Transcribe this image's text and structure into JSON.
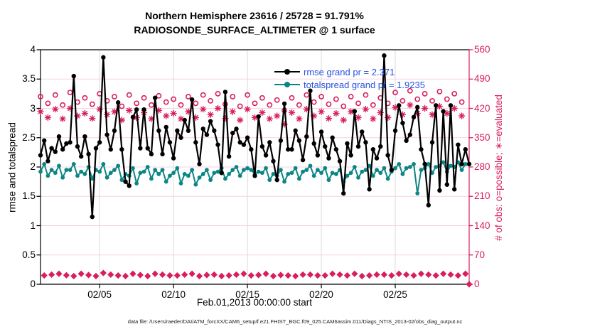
{
  "figure": {
    "title_line1": "Northern Hemisphere 23616 / 25728 = 91.791%",
    "title_line2": "RADIOSONDE_SURFACE_ALTIMETER @ 1 surface",
    "xlabel": "Feb.01,2013 00:00:00 start",
    "ylabel_left": "rmse and totalspread",
    "ylabel_right": "# of obs: o=possible; ∗=evaluated",
    "caption": "data file: /Users/raeder/DAI/ATM_forcXX/CAM6_setup/f.e21.FHIST_BGC.f09_025.CAM6assim.011/Diags_NTrS_2013-02/obs_diag_output.nc"
  },
  "legend": {
    "items": [
      {
        "label": "rmse grand pr = 2.371",
        "color": "#000000"
      },
      {
        "label": "totalspread grand pr = 1.9235",
        "color": "#0c8585"
      }
    ],
    "text_color": "#2a52e0"
  },
  "colors": {
    "black": "#000000",
    "teal": "#0c8585",
    "pink": "#d81e5f",
    "grid_h": "#f6d3de",
    "grid_v": "#dcdcdc",
    "legend_blue": "#2a52e0"
  },
  "chart_data": {
    "type": "line",
    "title": "Northern Hemisphere 23616 / 25728 = 91.791%  |  RADIOSONDE_SURFACE_ALTIMETER @ 1 surface",
    "x_axis": {
      "start_day": 0,
      "step_days": 0.25,
      "xlim": [
        0,
        29
      ],
      "ticks": [
        {
          "day": 4,
          "label": "02/05"
        },
        {
          "day": 9,
          "label": "02/10"
        },
        {
          "day": 14,
          "label": "02/15"
        },
        {
          "day": 19,
          "label": "02/20"
        },
        {
          "day": 24,
          "label": "02/25"
        }
      ],
      "label": "Feb.01,2013 00:00:00 start"
    },
    "y_axis_left": {
      "lim": [
        0,
        4
      ],
      "tick_step": 0.5,
      "label": "rmse and totalspread",
      "tick_labels": [
        "0",
        "0.5",
        "1",
        "1.5",
        "2",
        "2.5",
        "3",
        "3.5",
        "4"
      ]
    },
    "y_axis_right": {
      "lim": [
        0,
        560
      ],
      "tick_step": 70,
      "label": "# of obs: o=possible; ∗=evaluated",
      "tick_labels": [
        "0",
        "70",
        "140",
        "210",
        "280",
        "350",
        "420",
        "490",
        "560"
      ]
    },
    "grid": true,
    "legend_position": "top-right-inside",
    "series": [
      {
        "name": "rmse",
        "axis": "left",
        "style": "line+dot",
        "color": "#000000",
        "grand_mean": 2.371,
        "values": [
          2.2,
          2.45,
          2.1,
          2.32,
          2.26,
          2.52,
          2.3,
          2.4,
          2.42,
          3.55,
          2.35,
          2.18,
          2.52,
          2.22,
          1.15,
          2.32,
          2.42,
          3.87,
          2.55,
          2.3,
          2.62,
          3.1,
          2.3,
          1.75,
          1.68,
          2.85,
          2.98,
          2.32,
          2.98,
          2.32,
          2.22,
          3.18,
          2.62,
          2.22,
          2.68,
          2.42,
          2.15,
          2.62,
          2.5,
          2.8,
          2.62,
          3.15,
          2.42,
          2.05,
          2.65,
          2.55,
          2.78,
          2.62,
          2.38,
          1.9,
          3.28,
          2.18,
          2.58,
          2.65,
          2.42,
          2.38,
          2.5,
          2.3,
          1.85,
          2.86,
          2.35,
          2.2,
          2.42,
          2.1,
          1.78,
          2.45,
          3.08,
          2.3,
          2.3,
          2.62,
          2.45,
          2.12,
          2.52,
          3.3,
          2.4,
          2.2,
          2.6,
          2.35,
          2.15,
          2.5,
          2.3,
          2.1,
          1.55,
          2.4,
          2.2,
          2.95,
          2.35,
          2.6,
          2.42,
          1.62,
          2.3,
          2.15,
          2.35,
          3.9,
          2.2,
          1.95,
          2.62,
          3.05,
          2.75,
          2.45,
          2.55,
          2.85,
          3.02,
          2.3,
          2.05,
          1.35,
          2.42,
          3.05,
          1.6,
          2.95,
          1.7,
          3.05,
          1.62,
          2.38,
          2.05,
          2.3,
          2.05
        ]
      },
      {
        "name": "totalspread",
        "axis": "left",
        "style": "line+dot",
        "color": "#0c8585",
        "grand_mean": 1.9235,
        "values": [
          1.92,
          2.05,
          1.85,
          1.95,
          1.9,
          2.02,
          1.82,
          1.95,
          1.95,
          2.05,
          1.85,
          1.92,
          1.88,
          2.0,
          1.8,
          1.95,
          1.92,
          2.05,
          1.82,
          1.9,
          1.95,
          2.02,
          1.78,
          1.88,
          1.85,
          1.98,
          1.72,
          1.9,
          1.92,
          2.0,
          1.8,
          1.95,
          1.88,
          1.95,
          1.75,
          1.85,
          1.9,
          1.98,
          1.72,
          1.88,
          1.85,
          1.95,
          1.7,
          1.82,
          1.88,
          1.95,
          1.78,
          1.9,
          1.92,
          1.98,
          1.8,
          1.88,
          1.95,
          2.0,
          1.85,
          1.95,
          1.98,
          1.95,
          1.88,
          1.92,
          1.9,
          1.98,
          1.78,
          1.88,
          1.85,
          1.95,
          1.75,
          1.88,
          1.9,
          1.98,
          1.8,
          1.92,
          1.95,
          2.02,
          1.85,
          1.95,
          1.9,
          1.98,
          1.78,
          1.9,
          1.88,
          1.95,
          1.75,
          1.85,
          1.9,
          2.0,
          1.82,
          1.92,
          1.95,
          2.02,
          1.85,
          1.95,
          1.9,
          1.98,
          1.8,
          1.92,
          1.98,
          2.05,
          1.88,
          1.98,
          2.0,
          2.05,
          1.55,
          1.95,
          1.98,
          2.05,
          1.9,
          2.0,
          2.02,
          2.08,
          1.92,
          2.02,
          2.0,
          2.08,
          1.95,
          2.05,
          2.05
        ]
      },
      {
        "name": "N_possible",
        "axis": "right",
        "style": "open-circle",
        "color": "#d81e5f",
        "values": [
          448,
          24,
          432,
          26,
          452,
          28,
          428,
          24,
          458,
          22,
          435,
          28,
          445,
          25,
          430,
          22,
          455,
          30,
          438,
          26,
          448,
          24,
          425,
          22,
          452,
          28,
          432,
          25,
          445,
          22,
          428,
          28,
          450,
          26,
          435,
          24,
          442,
          24,
          428,
          26,
          448,
          28,
          432,
          22,
          452,
          25,
          438,
          26,
          455,
          22,
          430,
          24,
          448,
          26,
          425,
          28,
          452,
          24,
          432,
          25,
          445,
          28,
          428,
          22,
          440,
          25,
          415,
          24,
          445,
          22,
          428,
          26,
          452,
          26,
          435,
          24,
          448,
          24,
          430,
          28,
          442,
          26,
          425,
          24,
          448,
          28,
          432,
          22,
          452,
          24,
          428,
          26,
          445,
          26,
          432,
          24,
          458,
          28,
          438,
          26,
          462,
          24,
          442,
          28,
          455,
          26,
          438,
          24,
          460,
          28,
          442,
          26,
          455,
          24,
          435,
          28,
          0
        ]
      },
      {
        "name": "N_evaluated",
        "axis": "right",
        "style": "asterisk",
        "color": "#d81e5f",
        "values": [
          412,
          18,
          398,
          20,
          418,
          22,
          395,
          19,
          420,
          17,
          402,
          22,
          408,
          19,
          396,
          17,
          418,
          24,
          405,
          20,
          412,
          18,
          392,
          17,
          415,
          22,
          398,
          19,
          410,
          17,
          395,
          22,
          415,
          20,
          402,
          18,
          408,
          18,
          395,
          20,
          412,
          22,
          398,
          17,
          418,
          19,
          405,
          20,
          420,
          17,
          396,
          18,
          412,
          20,
          392,
          22,
          418,
          18,
          398,
          19,
          410,
          22,
          395,
          17,
          402,
          19,
          382,
          18,
          410,
          17,
          395,
          20,
          418,
          20,
          402,
          18,
          412,
          18,
          396,
          22,
          408,
          20,
          392,
          18,
          412,
          22,
          398,
          17,
          418,
          18,
          395,
          20,
          410,
          20,
          398,
          18,
          422,
          22,
          405,
          20,
          428,
          18,
          408,
          22,
          420,
          20,
          405,
          18,
          425,
          22,
          408,
          20,
          420,
          18,
          402,
          22,
          0
        ]
      }
    ],
    "low_count_marker": "filled-diamond",
    "low_count_threshold": 100
  }
}
